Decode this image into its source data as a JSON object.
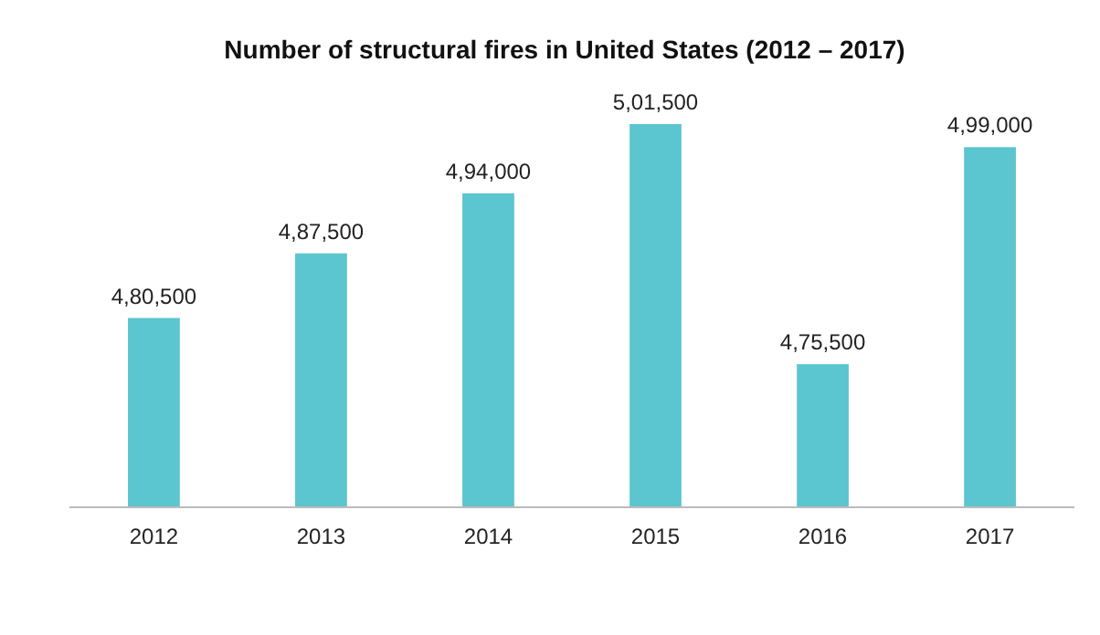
{
  "chart_data": {
    "type": "bar",
    "title": "Number of structural fires in United States (2012 – 2017)",
    "categories": [
      "2012",
      "2013",
      "2014",
      "2015",
      "2016",
      "2017"
    ],
    "values": [
      480500,
      487500,
      494000,
      501500,
      475500,
      499000
    ],
    "value_labels": [
      "4,80,500",
      "4,87,500",
      "4,94,000",
      "5,01,500",
      "4,75,500",
      "4,99,000"
    ],
    "color": "#5bc5d0",
    "ylim": [
      460000,
      501500
    ],
    "tick_labels": "x"
  }
}
